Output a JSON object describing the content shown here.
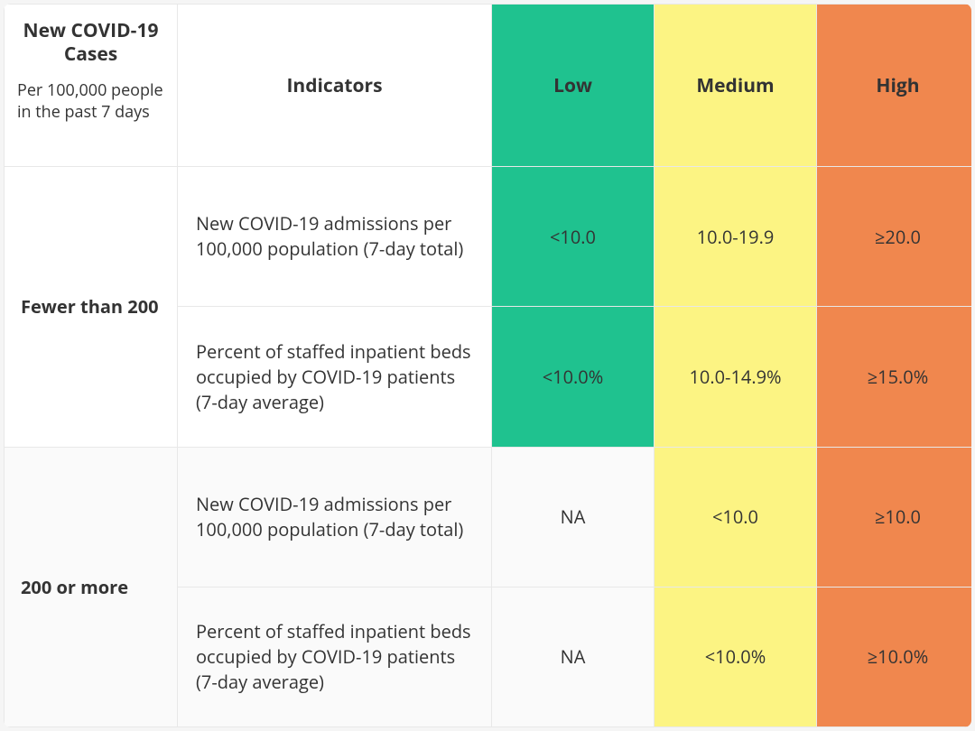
{
  "colors": {
    "low": "#1fc28f",
    "medium": "#fcf483",
    "high": "#f0874e",
    "gray": "#fafafa",
    "white": "#ffffff",
    "border": "#e8e8e8",
    "text": "#333333"
  },
  "header": {
    "cases_title": "New COVID-19 Cases",
    "cases_subtitle": "Per 100,000 people in the past 7 days",
    "indicators": "Indicators",
    "low": "Low",
    "medium": "Medium",
    "high": "High"
  },
  "groups": [
    {
      "label": "Fewer than 200",
      "rows": [
        {
          "indicator": "New COVID-19 admissions per 100,000 population (7-day total)",
          "low": "<10.0",
          "medium": "10.0-19.9",
          "high": "≥20.0",
          "low_bg": "low",
          "med_bg": "medium",
          "high_bg": "high"
        },
        {
          "indicator": "Percent of staffed inpatient beds occupied by COVID-19 patients (7-day average)",
          "low": "<10.0%",
          "medium": "10.0-14.9%",
          "high": "≥15.0%",
          "low_bg": "low",
          "med_bg": "medium",
          "high_bg": "high"
        }
      ]
    },
    {
      "label": "200 or more",
      "bg": "gray",
      "rows": [
        {
          "indicator": "New COVID-19 admissions per 100,000 population (7-day total)",
          "low": "NA",
          "medium": "<10.0",
          "high": "≥10.0",
          "low_bg": "none",
          "med_bg": "medium",
          "high_bg": "high"
        },
        {
          "indicator": "Percent of staffed inpatient beds occupied by COVID-19 patients (7-day average)",
          "low": "NA",
          "medium": "<10.0%",
          "high": "≥10.0%",
          "low_bg": "none",
          "med_bg": "medium",
          "high_bg": "high"
        }
      ]
    }
  ]
}
